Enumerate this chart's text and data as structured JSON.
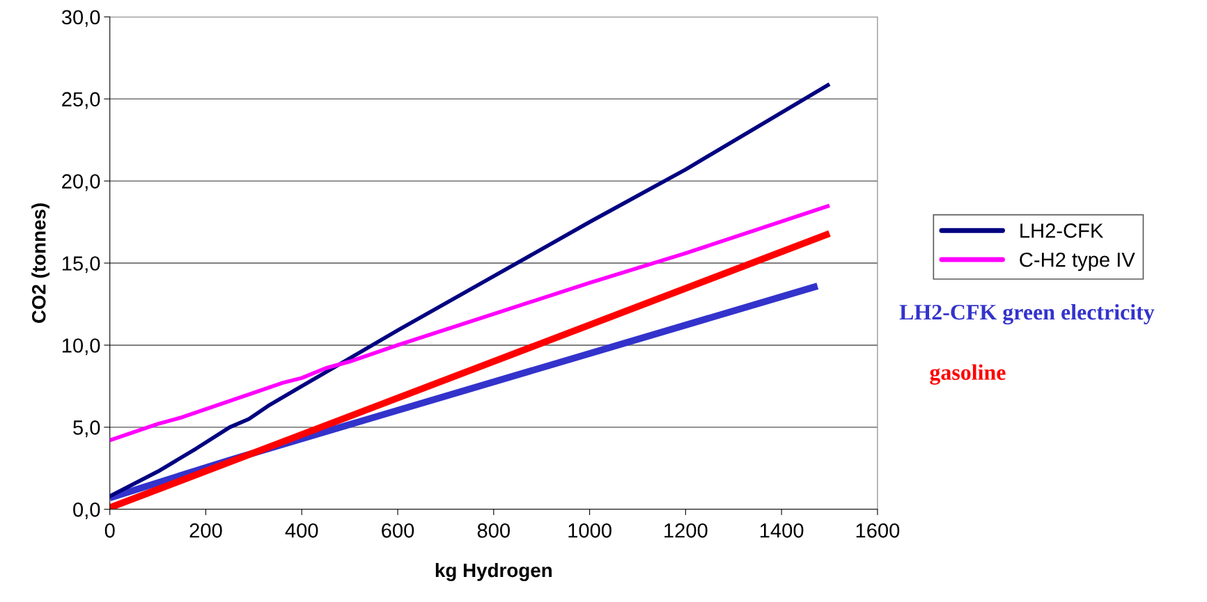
{
  "chart_data": {
    "type": "line",
    "xlabel": "kg Hydrogen",
    "ylabel": "CO2 (tonnes)",
    "xlim": [
      0,
      1600
    ],
    "xticks": [
      0,
      200,
      400,
      600,
      800,
      1000,
      1200,
      1400,
      1600
    ],
    "ylim": [
      0,
      30
    ],
    "yticks": [
      {
        "value": 0,
        "label": "0,0"
      },
      {
        "value": 5,
        "label": "5,0"
      },
      {
        "value": 10,
        "label": "10,0"
      },
      {
        "value": 15,
        "label": "15,0"
      },
      {
        "value": 20,
        "label": "20,0"
      },
      {
        "value": 25,
        "label": "25,0"
      },
      {
        "value": 30,
        "label": "30,0"
      }
    ],
    "annotations": [
      "LH2-CFK green electricity",
      "gasoline"
    ],
    "grid": "y",
    "legend": "right",
    "marker": "none",
    "line_style": "solid",
    "series": [
      {
        "name": "LH2-CFK",
        "color": "#000080",
        "x": [
          0,
          100,
          180,
          250,
          290,
          330,
          400,
          500,
          600,
          800,
          1000,
          1200,
          1500
        ],
        "values": [
          0.8,
          2.3,
          3.7,
          5.0,
          5.5,
          6.3,
          7.5,
          9.2,
          10.9,
          14.2,
          17.5,
          20.7,
          25.9
        ]
      },
      {
        "name": "C-H2 type IV",
        "color": "#ff00ff",
        "x": [
          0,
          100,
          150,
          250,
          320,
          360,
          400,
          450,
          500,
          600,
          800,
          1000,
          1200,
          1500
        ],
        "values": [
          4.2,
          5.2,
          5.6,
          6.6,
          7.3,
          7.7,
          8.0,
          8.6,
          9.0,
          10.0,
          11.9,
          13.8,
          15.6,
          18.5
        ]
      },
      {
        "color": "#3333cc",
        "x": [
          0,
          250,
          1475
        ],
        "values": [
          0.7,
          3.0,
          13.6
        ]
      },
      {
        "color": "#ff0000",
        "x": [
          0,
          1500
        ],
        "values": [
          0.1,
          16.8
        ]
      }
    ]
  }
}
